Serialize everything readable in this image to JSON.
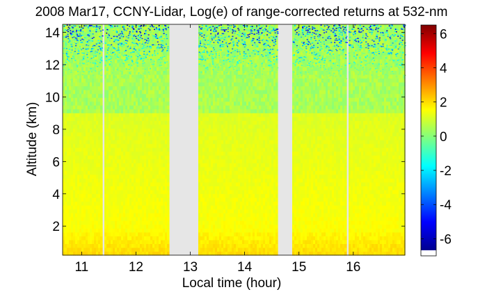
{
  "chart_data": {
    "type": "heatmap",
    "title": "2008 Mar17, CCNY-Lidar, Log(e) of range-corrected returns at 532-nm",
    "xlabel": "Local time (hour)",
    "ylabel": "Altitude (km)",
    "xlim": [
      10.65,
      16.95
    ],
    "ylim": [
      0.2,
      14.5
    ],
    "xticks": [
      11,
      12,
      13,
      14,
      15,
      16
    ],
    "yticks": [
      2,
      4,
      6,
      8,
      10,
      12,
      14
    ],
    "colorbar": {
      "clim": [
        -7,
        6.5
      ],
      "ticks": [
        -6,
        -4,
        -2,
        0,
        2,
        4,
        6
      ],
      "colormap": "jet"
    },
    "data_gaps_hours": [
      [
        11.38,
        11.42
      ],
      [
        12.6,
        13.15
      ],
      [
        14.6,
        14.88
      ],
      [
        15.88,
        15.91
      ]
    ],
    "features": {
      "boundary_layer_top_km": 1.6,
      "noise_onset_km": 11,
      "near_surface_value": 2.0,
      "mid_altitude_value": 1.0,
      "upper_altitude_value": 0.3
    }
  }
}
